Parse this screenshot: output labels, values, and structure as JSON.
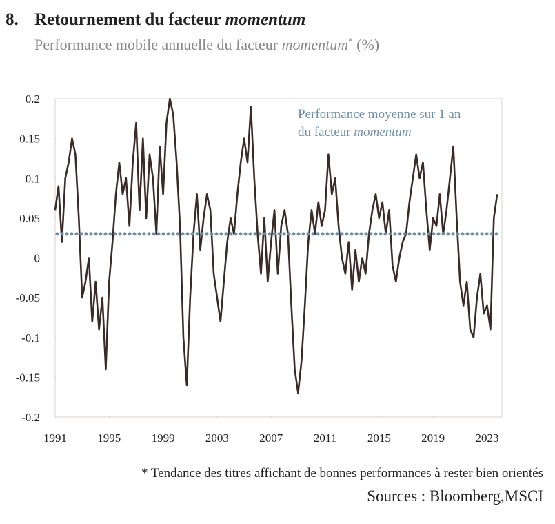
{
  "chart_data": {
    "type": "line",
    "number": "8.",
    "title": [
      "Retournement du facteur ",
      "momentum"
    ],
    "subtitle": [
      "Performance mobile annuelle du facteur ",
      "momentum",
      "*",
      " (%)"
    ],
    "annotation": [
      "Performance moyenne sur 1 an",
      "du facteur ",
      "momentum"
    ],
    "footnote": "* Tendance des titres affichant de bonnes performances à rester bien orientés",
    "source": "Sources : Bloomberg,MSCI",
    "reference_line": {
      "value": 0.03,
      "color": "#6e8ea6"
    },
    "xlim": [
      1991,
      2024.1
    ],
    "xticks": [
      1991,
      1995,
      1999,
      2003,
      2007,
      2011,
      2015,
      2019,
      2023
    ],
    "ylim": [
      -0.2,
      0.2
    ],
    "yticks": [
      0.2,
      0.15,
      0.1,
      0.05,
      0,
      -0.05,
      -0.1,
      -0.15,
      -0.2
    ],
    "x": [
      1991,
      1991.25,
      1991.5,
      1991.75,
      1992,
      1992.25,
      1992.5,
      1992.75,
      1993,
      1993.25,
      1993.5,
      1993.75,
      1994,
      1994.25,
      1994.5,
      1994.75,
      1995,
      1995.25,
      1995.5,
      1995.75,
      1996,
      1996.25,
      1996.5,
      1996.75,
      1997,
      1997.25,
      1997.5,
      1997.75,
      1998,
      1998.25,
      1998.5,
      1998.75,
      1999,
      1999.25,
      1999.5,
      1999.75,
      2000,
      2000.25,
      2000.5,
      2000.75,
      2001,
      2001.25,
      2001.5,
      2001.75,
      2002,
      2002.25,
      2002.5,
      2002.75,
      2003,
      2003.25,
      2003.5,
      2003.75,
      2004,
      2004.25,
      2004.5,
      2004.75,
      2005,
      2005.25,
      2005.5,
      2005.75,
      2006,
      2006.25,
      2006.5,
      2006.75,
      2007,
      2007.25,
      2007.5,
      2007.75,
      2008,
      2008.25,
      2008.5,
      2008.75,
      2009,
      2009.25,
      2009.5,
      2009.75,
      2010,
      2010.25,
      2010.5,
      2010.75,
      2011,
      2011.25,
      2011.5,
      2011.75,
      2012,
      2012.25,
      2012.5,
      2012.75,
      2013,
      2013.25,
      2013.5,
      2013.75,
      2014,
      2014.25,
      2014.5,
      2014.75,
      2015,
      2015.25,
      2015.5,
      2015.75,
      2016,
      2016.25,
      2016.5,
      2016.75,
      2017,
      2017.25,
      2017.5,
      2017.75,
      2018,
      2018.25,
      2018.5,
      2018.75,
      2019,
      2019.25,
      2019.5,
      2019.75,
      2020,
      2020.25,
      2020.5,
      2020.75,
      2021,
      2021.25,
      2021.5,
      2021.75,
      2022,
      2022.25,
      2022.5,
      2022.75,
      2023,
      2023.25,
      2023.5,
      2023.75
    ],
    "series": [
      {
        "color": "#3a2a28",
        "values": [
          0.06,
          0.09,
          0.02,
          0.1,
          0.12,
          0.15,
          0.13,
          0.05,
          -0.05,
          -0.03,
          0.0,
          -0.08,
          -0.03,
          -0.09,
          -0.05,
          -0.14,
          -0.03,
          0.02,
          0.08,
          0.12,
          0.08,
          0.1,
          0.04,
          0.12,
          0.17,
          0.06,
          0.15,
          0.05,
          0.13,
          0.1,
          0.03,
          0.14,
          0.08,
          0.17,
          0.2,
          0.18,
          0.12,
          0.04,
          -0.1,
          -0.16,
          -0.05,
          0.03,
          0.08,
          0.01,
          0.05,
          0.08,
          0.06,
          -0.02,
          -0.05,
          -0.08,
          -0.03,
          0.02,
          0.05,
          0.03,
          0.08,
          0.12,
          0.15,
          0.12,
          0.19,
          0.1,
          0.03,
          -0.02,
          0.05,
          -0.03,
          0.02,
          0.06,
          -0.02,
          0.04,
          0.06,
          0.03,
          -0.06,
          -0.14,
          -0.17,
          -0.13,
          -0.06,
          0.02,
          0.06,
          0.03,
          0.07,
          0.04,
          0.06,
          0.13,
          0.08,
          0.1,
          0.04,
          0.0,
          -0.02,
          0.02,
          -0.04,
          0.01,
          -0.03,
          0.0,
          -0.02,
          0.03,
          0.06,
          0.08,
          0.05,
          0.07,
          0.03,
          0.06,
          -0.01,
          -0.03,
          0.0,
          0.02,
          0.03,
          0.07,
          0.1,
          0.13,
          0.1,
          0.12,
          0.06,
          0.01,
          0.05,
          0.04,
          0.08,
          0.03,
          0.06,
          0.1,
          0.14,
          0.05,
          -0.03,
          -0.06,
          -0.03,
          -0.09,
          -0.1,
          -0.05,
          -0.02,
          -0.07,
          -0.06,
          -0.09,
          0.05,
          0.08
        ]
      }
    ]
  }
}
